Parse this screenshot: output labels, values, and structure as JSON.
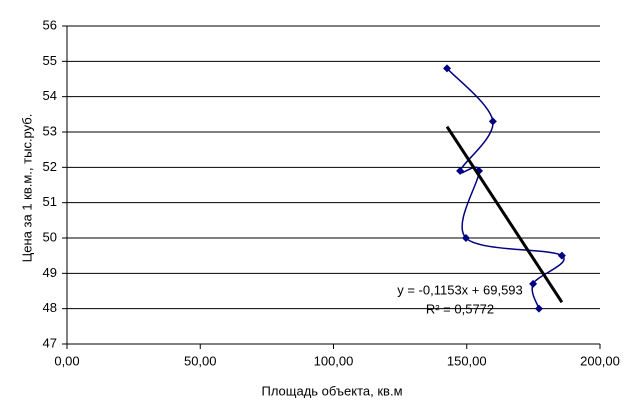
{
  "chart_data": {
    "type": "scatter",
    "x_label": "Площадь объекта, кв.м",
    "y_label": "Цена за 1 кв.м., тыс.руб.",
    "series": [
      {
        "color": "#000080",
        "x": [
          142.6,
          159.8,
          147.5,
          154.6,
          149.7,
          185.7,
          174.9,
          177.1
        ],
        "values": [
          54.8,
          53.3,
          51.9,
          51.9,
          50.0,
          49.5,
          48.7,
          48.0
        ]
      }
    ],
    "trendline": {
      "slope": -0.1153,
      "intercept": 69.593,
      "equation": "y = -0,1153x + 69,593",
      "r2": "R² = 0,5772",
      "color": "#000000"
    },
    "xlim": [
      0,
      200
    ],
    "xticks": [
      {
        "value": 0,
        "label": "0,00"
      },
      {
        "value": 50,
        "label": "50,00"
      },
      {
        "value": 100,
        "label": "100,00"
      },
      {
        "value": 150,
        "label": "150,00"
      },
      {
        "value": 200,
        "label": "200,00"
      }
    ],
    "ylim": [
      47,
      56
    ],
    "yticks": [
      47,
      48,
      49,
      50,
      51,
      52,
      53,
      54,
      55,
      56
    ],
    "grid": true
  }
}
